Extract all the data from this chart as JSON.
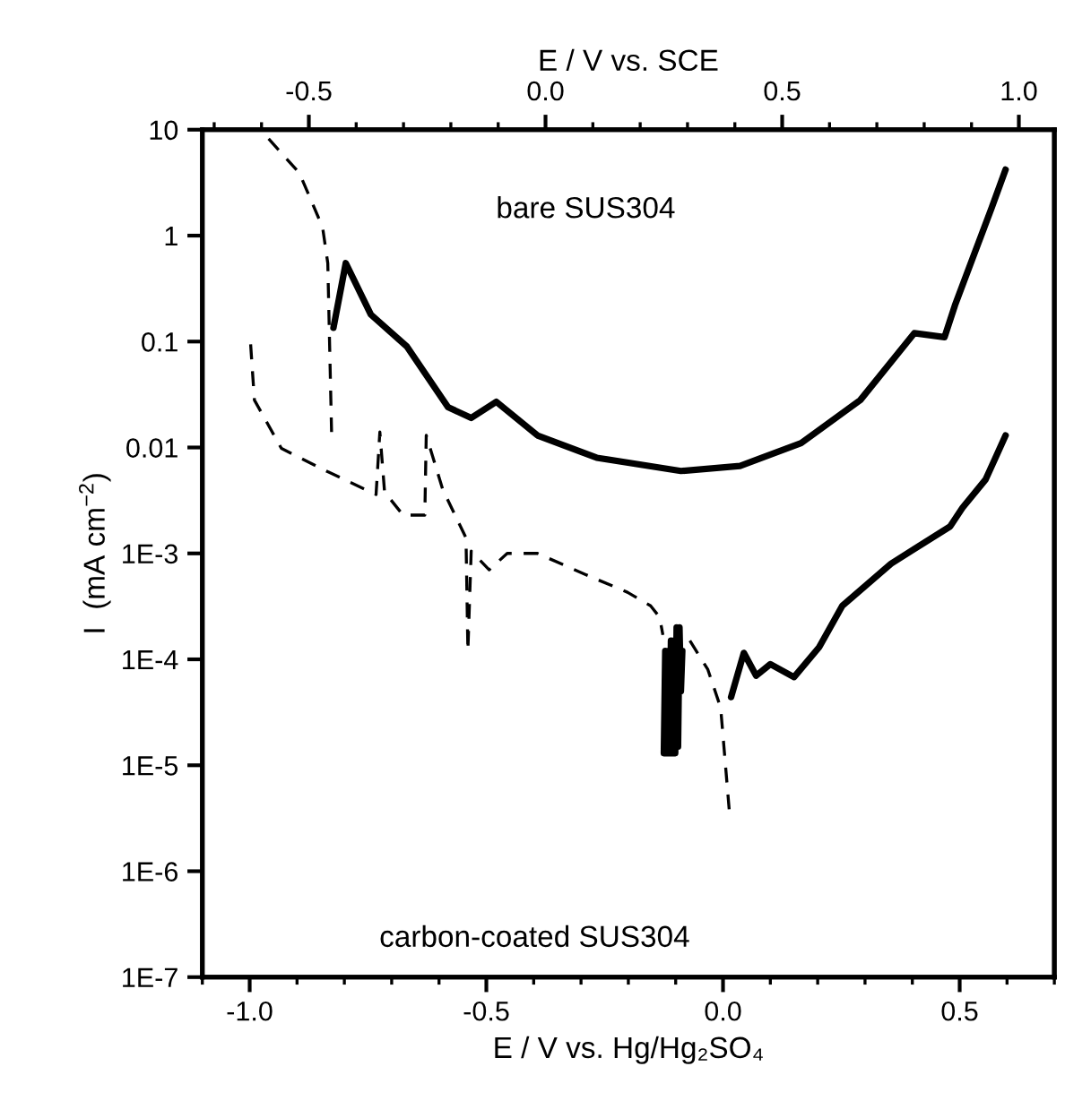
{
  "chart_data": {
    "type": "line",
    "log": "y",
    "xlabel": "E / V vs. Hg/Hg₂SO₄",
    "x2label": "E / V vs. SCE",
    "ylabel": "I  (mA cm$^{−2}$)",
    "xlim": [
      -1.1,
      0.7
    ],
    "xticks": [
      {
        "value": -1.0,
        "label": "-1.0"
      },
      {
        "value": -0.5,
        "label": "-0.5"
      },
      {
        "value": 0.0,
        "label": "0.0"
      },
      {
        "value": 0.5,
        "label": "0.5"
      }
    ],
    "x2lim": [
      -0.725,
      1.075
    ],
    "x2ticks": [
      {
        "value": -0.5,
        "label": "-0.5"
      },
      {
        "value": 0.0,
        "label": "0.0"
      },
      {
        "value": 0.5,
        "label": "0.5"
      },
      {
        "value": 1.0,
        "label": "1.0"
      }
    ],
    "ylim": [
      1e-07,
      10
    ],
    "yticks": [
      10,
      1,
      0.1,
      0.01,
      {
        "value": 0.001,
        "label": "1E-3"
      },
      {
        "value": 0.0001,
        "label": "1E-4"
      },
      {
        "value": 1e-05,
        "label": "1E-5"
      },
      {
        "value": 1e-06,
        "label": "1E-6"
      },
      {
        "value": 1e-07,
        "label": "1E-7"
      }
    ],
    "grid": false,
    "legend": false,
    "annotations": [
      "bare SUS304",
      "carbon-coated SUS304"
    ],
    "series": [
      {
        "color": "#000000",
        "line_style": "dashed",
        "x": [
          -0.96,
          -0.895,
          -0.846,
          -0.835,
          -0.827
        ],
        "values": [
          8.2,
          3.9,
          1.2,
          0.55,
          0.014
        ]
      },
      {
        "color": "#000000",
        "line_style": "solid",
        "x": [
          -0.823,
          -0.797,
          -0.744,
          -0.668,
          -0.581,
          -0.532,
          -0.479,
          -0.392,
          -0.267,
          -0.089,
          0.036,
          0.165,
          0.29,
          0.404,
          0.468,
          0.49,
          0.529,
          0.567,
          0.597
        ],
        "values": [
          0.135,
          0.55,
          0.18,
          0.09,
          0.024,
          0.019,
          0.027,
          0.013,
          0.008,
          0.006,
          0.0067,
          0.011,
          0.028,
          0.12,
          0.11,
          0.22,
          0.64,
          1.8,
          4.2
        ]
      },
      {
        "color": "#000000",
        "line_style": "dashed",
        "x": [
          -0.998,
          -0.99,
          -0.933,
          -0.835,
          -0.733,
          -0.725,
          -0.715,
          -0.676,
          -0.63,
          -0.627,
          -0.592,
          -0.543,
          -0.539,
          -0.532,
          -0.494,
          -0.456,
          -0.392,
          -0.29,
          -0.202,
          -0.153,
          -0.134,
          -0.127,
          null,
          -0.07,
          -0.032,
          -0.005,
          0.014
        ],
        "values": [
          0.094,
          0.028,
          0.0098,
          0.0059,
          0.0036,
          0.014,
          0.0038,
          0.0023,
          0.0023,
          0.013,
          0.004,
          0.0014,
          0.00012,
          0.00105,
          0.0007,
          0.001,
          0.001,
          0.00063,
          0.00043,
          0.00032,
          0.00025,
          0.00017,
          null,
          0.00015,
          8e-05,
          3.5e-05,
          3.4e-06
        ]
      },
      {
        "color": "#000000",
        "line_style": "solid",
        "x": [
          -0.125,
          -0.122,
          -0.119,
          -0.116,
          -0.113,
          -0.11,
          -0.107,
          -0.104,
          -0.101,
          -0.098,
          -0.095,
          -0.092,
          -0.089,
          -0.086,
          null,
          0.017,
          0.044,
          0.07,
          0.1,
          0.15,
          0.203,
          0.252,
          0.355,
          0.48,
          0.506,
          0.555,
          0.597
        ],
        "values": [
          1.3e-05,
          0.00012,
          1.3e-05,
          0.00012,
          1.3e-05,
          0.00015,
          1.3e-05,
          0.00015,
          1.3e-05,
          0.0002,
          1.5e-05,
          0.0002,
          5e-05,
          0.00012,
          null,
          4.4e-05,
          0.000115,
          7e-05,
          9e-05,
          6.8e-05,
          0.00013,
          0.00032,
          0.0008,
          0.0018,
          0.0027,
          0.005,
          0.013
        ]
      }
    ]
  }
}
